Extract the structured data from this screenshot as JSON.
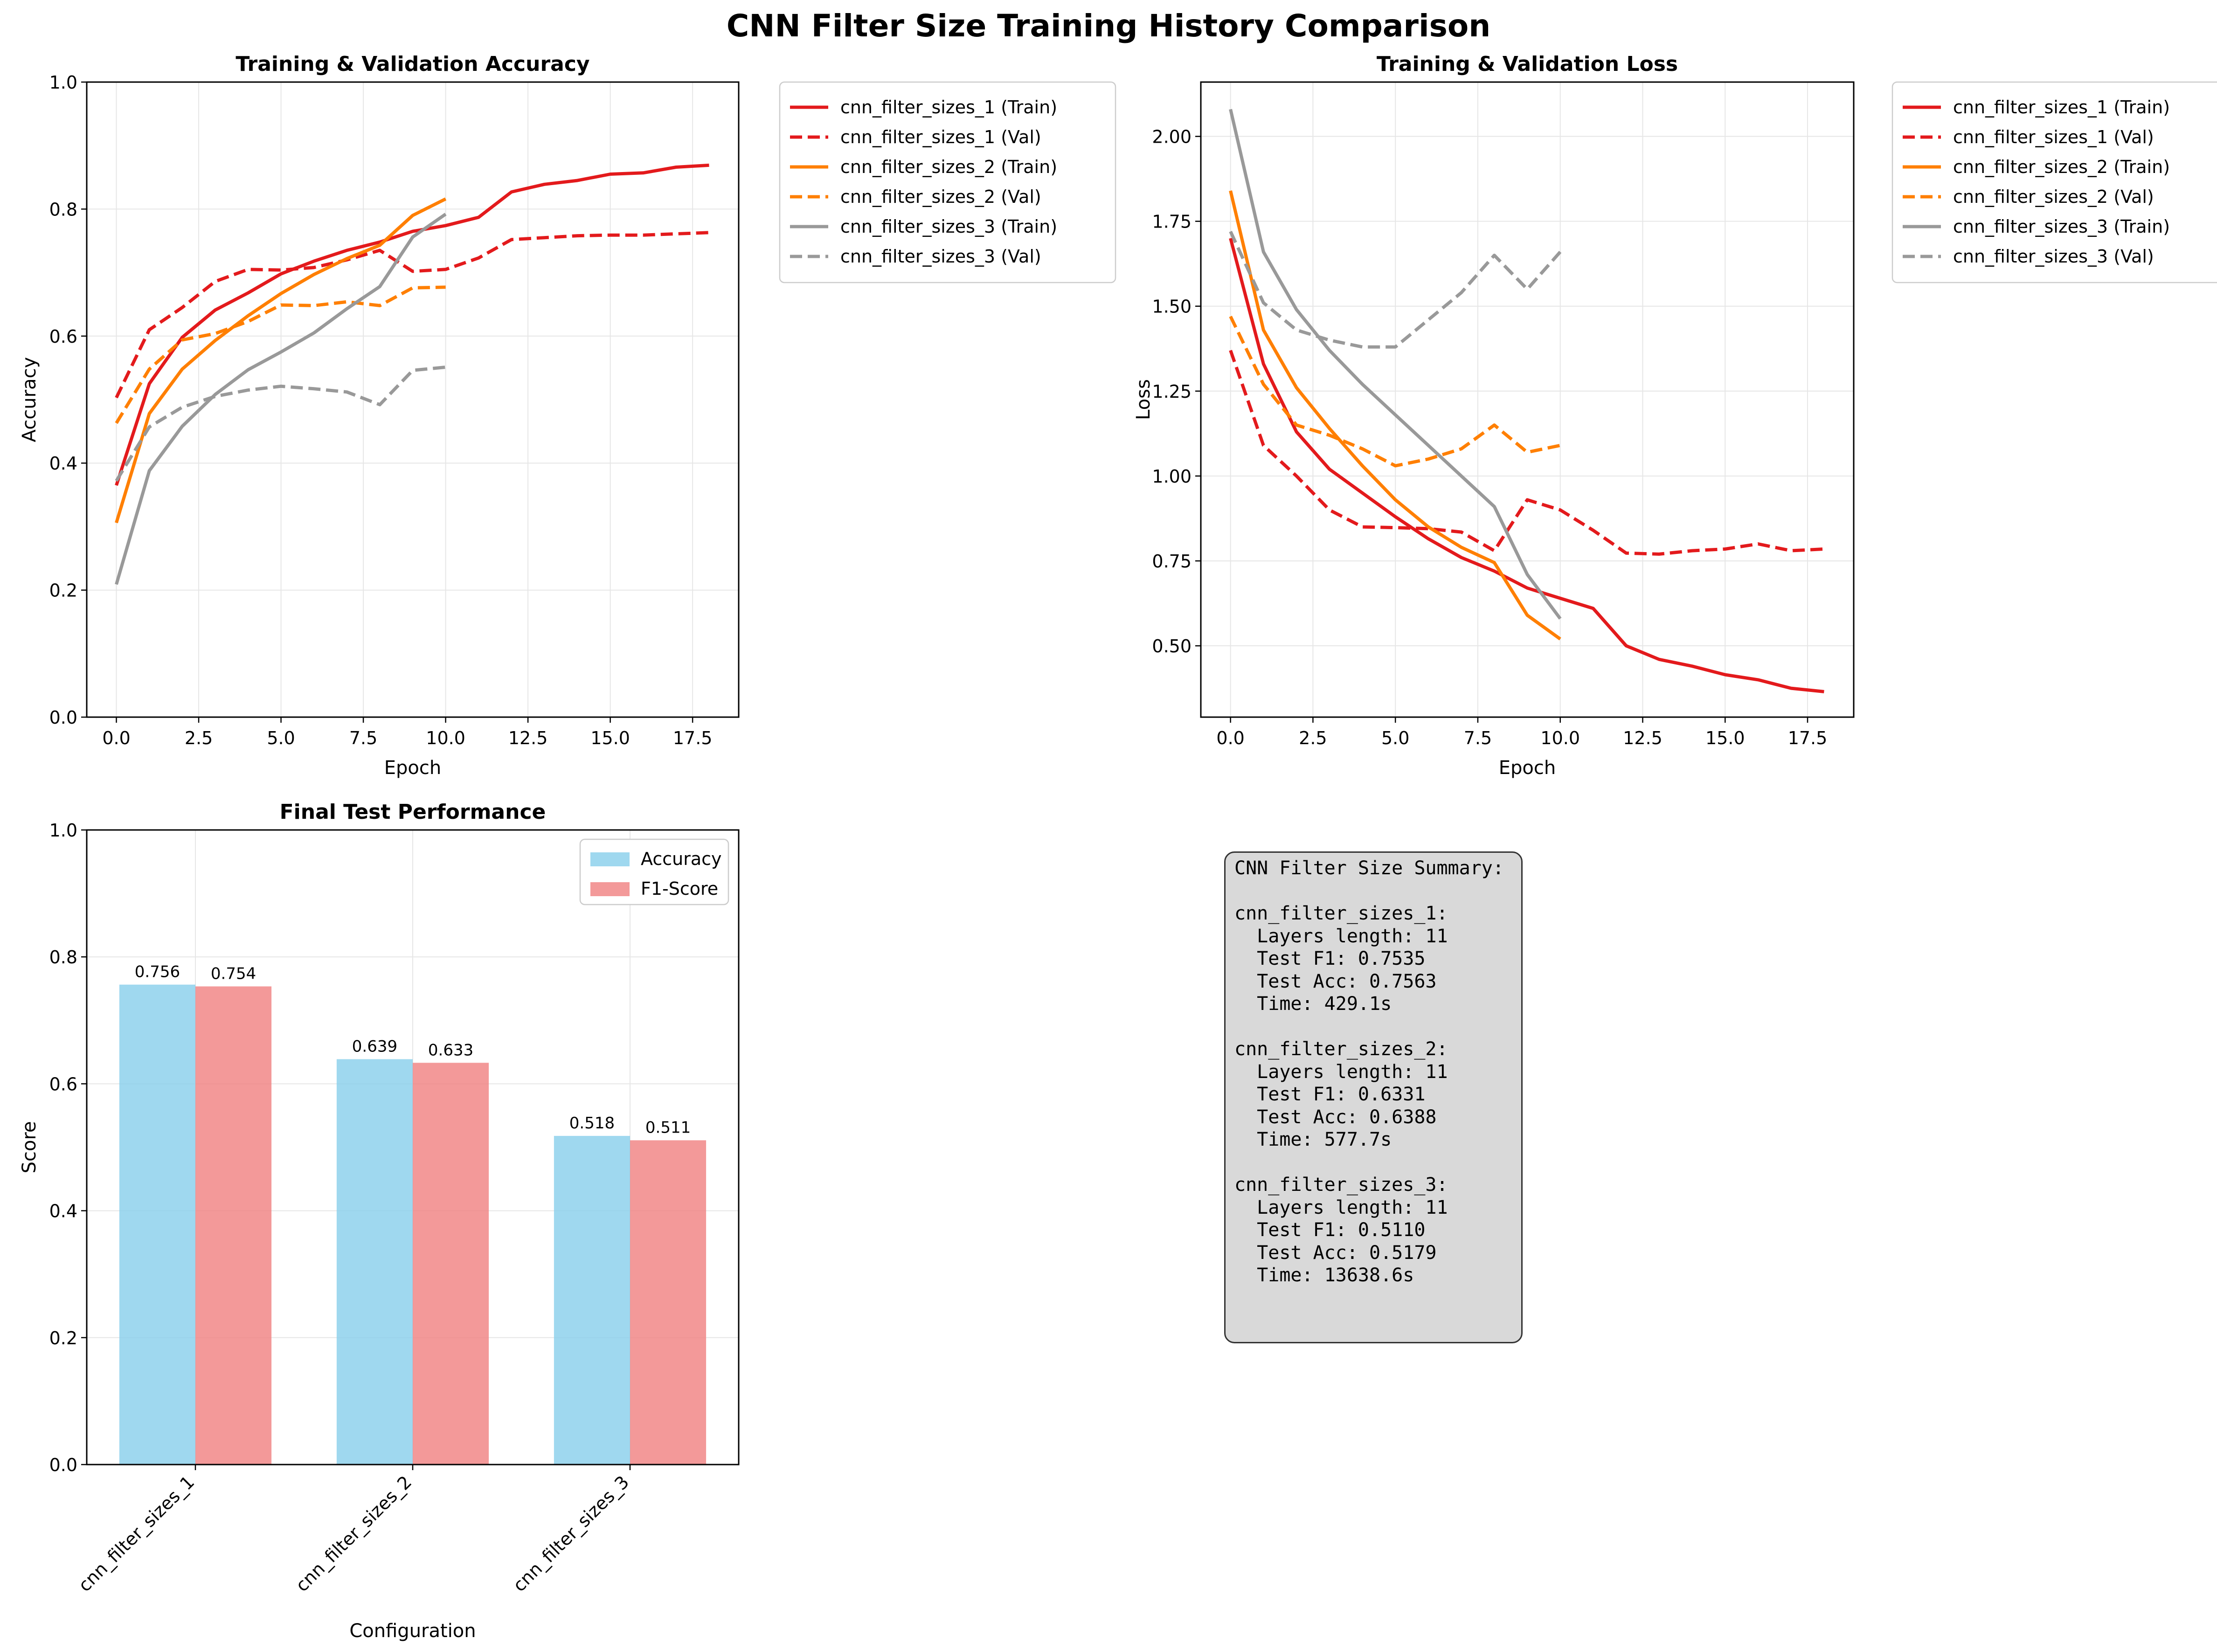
{
  "figure": {
    "suptitle": "CNN Filter Size Training History Comparison"
  },
  "colors": {
    "cfg1": "#e31a1c",
    "cfg2": "#ff7f00",
    "cfg3": "#999999",
    "bar_acc": "#87ceeb",
    "bar_f1": "#f08080",
    "grid": "#e6e6e6"
  },
  "chart_data": [
    {
      "type": "line",
      "title": "Training & Validation Accuracy",
      "xlabel": "Epoch",
      "ylabel": "Accuracy",
      "xlim": [
        -0.9,
        18.9
      ],
      "ylim": [
        0.0,
        1.0
      ],
      "xticks": [
        0,
        2.5,
        5,
        7.5,
        10,
        12.5,
        15,
        17.5
      ],
      "xtick_labels": [
        "0.0",
        "2.5",
        "5.0",
        "7.5",
        "10.0",
        "12.5",
        "15.0",
        "17.5"
      ],
      "yticks": [
        0,
        0.2,
        0.4,
        0.6,
        0.8,
        1.0
      ],
      "ytick_labels": [
        "0.0",
        "0.2",
        "0.4",
        "0.6",
        "0.8",
        "1.0"
      ],
      "grid": true,
      "legend": "outside-right",
      "series": [
        {
          "name": "cnn_filter_sizes_1 (Train)",
          "color": "#e31a1c",
          "dash": "solid",
          "x": [
            0,
            1,
            2,
            3,
            4,
            5,
            6,
            7,
            8,
            9,
            10,
            11,
            12,
            13,
            14,
            15,
            16,
            17,
            18
          ],
          "y": [
            0.365,
            0.525,
            0.598,
            0.641,
            0.668,
            0.698,
            0.718,
            0.735,
            0.748,
            0.765,
            0.774,
            0.787,
            0.827,
            0.839,
            0.845,
            0.855,
            0.857,
            0.866,
            0.869
          ]
        },
        {
          "name": "cnn_filter_sizes_1 (Val)",
          "color": "#e31a1c",
          "dash": "dashed",
          "x": [
            0,
            1,
            2,
            3,
            4,
            5,
            6,
            7,
            8,
            9,
            10,
            11,
            12,
            13,
            14,
            15,
            16,
            17,
            18
          ],
          "y": [
            0.503,
            0.61,
            0.645,
            0.686,
            0.705,
            0.704,
            0.708,
            0.72,
            0.735,
            0.702,
            0.705,
            0.723,
            0.752,
            0.755,
            0.758,
            0.759,
            0.759,
            0.761,
            0.763
          ]
        },
        {
          "name": "cnn_filter_sizes_2 (Train)",
          "color": "#ff7f00",
          "dash": "solid",
          "x": [
            0,
            1,
            2,
            3,
            4,
            5,
            6,
            7,
            8,
            9,
            10
          ],
          "y": [
            0.306,
            0.478,
            0.548,
            0.593,
            0.632,
            0.667,
            0.697,
            0.722,
            0.743,
            0.79,
            0.816
          ]
        },
        {
          "name": "cnn_filter_sizes_2 (Val)",
          "color": "#ff7f00",
          "dash": "dashed",
          "x": [
            0,
            1,
            2,
            3,
            4,
            5,
            6,
            7,
            8,
            9,
            10
          ],
          "y": [
            0.463,
            0.548,
            0.594,
            0.604,
            0.623,
            0.649,
            0.648,
            0.654,
            0.648,
            0.676,
            0.677
          ]
        },
        {
          "name": "cnn_filter_sizes_3 (Train)",
          "color": "#999999",
          "dash": "solid",
          "x": [
            0,
            1,
            2,
            3,
            4,
            5,
            6,
            7,
            8,
            9,
            10
          ],
          "y": [
            0.209,
            0.388,
            0.458,
            0.508,
            0.547,
            0.575,
            0.605,
            0.643,
            0.678,
            0.756,
            0.792
          ]
        },
        {
          "name": "cnn_filter_sizes_3 (Val)",
          "color": "#999999",
          "dash": "dashed",
          "x": [
            0,
            1,
            2,
            3,
            4,
            5,
            6,
            7,
            8,
            9,
            10
          ],
          "y": [
            0.372,
            0.457,
            0.488,
            0.505,
            0.515,
            0.521,
            0.517,
            0.512,
            0.492,
            0.546,
            0.551
          ]
        }
      ]
    },
    {
      "type": "line",
      "title": "Training & Validation Loss",
      "xlabel": "Epoch",
      "ylabel": "Loss",
      "xlim": [
        -0.9,
        18.9
      ],
      "ylim": [
        0.29,
        2.16
      ],
      "xticks": [
        0,
        2.5,
        5,
        7.5,
        10,
        12.5,
        15,
        17.5
      ],
      "xtick_labels": [
        "0.0",
        "2.5",
        "5.0",
        "7.5",
        "10.0",
        "12.5",
        "15.0",
        "17.5"
      ],
      "yticks": [
        0.5,
        0.75,
        1.0,
        1.25,
        1.5,
        1.75,
        2.0
      ],
      "ytick_labels": [
        "0.50",
        "0.75",
        "1.00",
        "1.25",
        "1.50",
        "1.75",
        "2.00"
      ],
      "grid": true,
      "legend": "outside-right",
      "series": [
        {
          "name": "cnn_filter_sizes_1 (Train)",
          "color": "#e31a1c",
          "dash": "solid",
          "x": [
            0,
            1,
            2,
            3,
            4,
            5,
            6,
            7,
            8,
            9,
            10,
            11,
            12,
            13,
            14,
            15,
            16,
            17,
            18
          ],
          "y": [
            1.7,
            1.33,
            1.13,
            1.02,
            0.95,
            0.88,
            0.815,
            0.76,
            0.72,
            0.67,
            0.64,
            0.61,
            0.5,
            0.46,
            0.44,
            0.415,
            0.4,
            0.375,
            0.365
          ]
        },
        {
          "name": "cnn_filter_sizes_1 (Val)",
          "color": "#e31a1c",
          "dash": "dashed",
          "x": [
            0,
            1,
            2,
            3,
            4,
            5,
            6,
            7,
            8,
            9,
            10,
            11,
            12,
            13,
            14,
            15,
            16,
            17,
            18
          ],
          "y": [
            1.37,
            1.09,
            1.0,
            0.9,
            0.85,
            0.848,
            0.845,
            0.835,
            0.78,
            0.93,
            0.9,
            0.84,
            0.773,
            0.77,
            0.78,
            0.785,
            0.8,
            0.78,
            0.785
          ]
        },
        {
          "name": "cnn_filter_sizes_2 (Train)",
          "color": "#ff7f00",
          "dash": "solid",
          "x": [
            0,
            1,
            2,
            3,
            4,
            5,
            6,
            7,
            8,
            9,
            10
          ],
          "y": [
            1.84,
            1.43,
            1.26,
            1.14,
            1.03,
            0.93,
            0.85,
            0.79,
            0.745,
            0.59,
            0.52
          ]
        },
        {
          "name": "cnn_filter_sizes_2 (Val)",
          "color": "#ff7f00",
          "dash": "dashed",
          "x": [
            0,
            1,
            2,
            3,
            4,
            5,
            6,
            7,
            8,
            9,
            10
          ],
          "y": [
            1.47,
            1.27,
            1.15,
            1.12,
            1.08,
            1.03,
            1.05,
            1.08,
            1.15,
            1.07,
            1.09
          ]
        },
        {
          "name": "cnn_filter_sizes_3 (Train)",
          "color": "#999999",
          "dash": "solid",
          "x": [
            0,
            1,
            2,
            3,
            4,
            5,
            6,
            7,
            8,
            9,
            10
          ],
          "y": [
            2.08,
            1.66,
            1.49,
            1.37,
            1.27,
            1.18,
            1.09,
            1.0,
            0.91,
            0.71,
            0.58
          ]
        },
        {
          "name": "cnn_filter_sizes_3 (Val)",
          "color": "#999999",
          "dash": "dashed",
          "x": [
            0,
            1,
            2,
            3,
            4,
            5,
            6,
            7,
            8,
            9,
            10
          ],
          "y": [
            1.72,
            1.51,
            1.43,
            1.4,
            1.38,
            1.38,
            1.46,
            1.54,
            1.65,
            1.55,
            1.66
          ]
        }
      ]
    },
    {
      "type": "bar",
      "title": "Final Test Performance",
      "xlabel": "Configuration",
      "ylabel": "Score",
      "ylim": [
        0.0,
        1.0
      ],
      "yticks": [
        0,
        0.2,
        0.4,
        0.6,
        0.8,
        1.0
      ],
      "ytick_labels": [
        "0.0",
        "0.2",
        "0.4",
        "0.6",
        "0.8",
        "1.0"
      ],
      "grid": true,
      "legend": "top-right",
      "categories": [
        "cnn_filter_sizes_1",
        "cnn_filter_sizes_2",
        "cnn_filter_sizes_3"
      ],
      "series": [
        {
          "name": "Accuracy",
          "color": "#87ceeb",
          "values": [
            0.7563,
            0.6388,
            0.5179
          ],
          "labels": [
            "0.756",
            "0.639",
            "0.518"
          ]
        },
        {
          "name": "F1-Score",
          "color": "#f08080",
          "values": [
            0.7535,
            0.6331,
            0.511
          ],
          "labels": [
            "0.754",
            "0.633",
            "0.511"
          ]
        }
      ]
    }
  ],
  "summary": {
    "text": "CNN Filter Size Summary:\n\ncnn_filter_sizes_1:\n  Layers length: 11\n  Test F1: 0.7535\n  Test Acc: 0.7563\n  Time: 429.1s\n\ncnn_filter_sizes_2:\n  Layers length: 11\n  Test F1: 0.6331\n  Test Acc: 0.6388\n  Time: 577.7s\n\ncnn_filter_sizes_3:\n  Layers length: 11\n  Test F1: 0.5110\n  Test Acc: 0.5179\n  Time: 13638.6s"
  }
}
